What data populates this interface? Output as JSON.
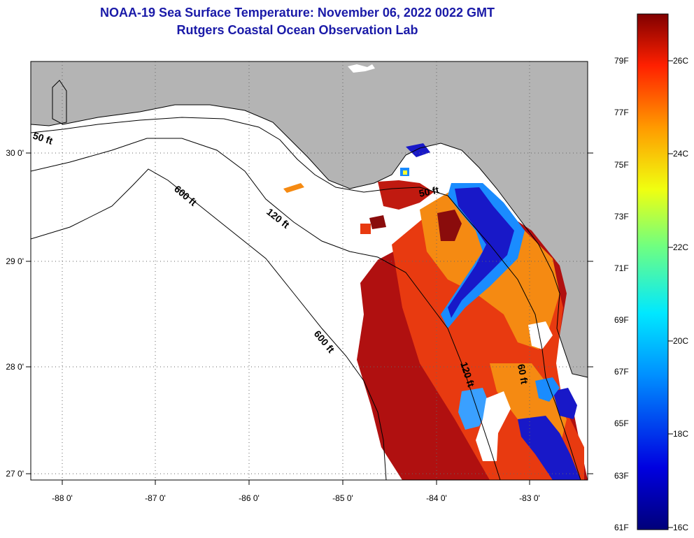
{
  "title": {
    "line1": "NOAA-19 Sea Surface Temperature:  November 06, 2022 0022 GMT",
    "line2": "Rutgers Coastal Ocean Observation Lab"
  },
  "axes": {
    "lat_labels": [
      "30 0'",
      "29 0'",
      "28 0'",
      "27 0'"
    ],
    "lon_labels": [
      "-88 0'",
      "-87 0'",
      "-86 0'",
      "-85 0'",
      "-84 0'",
      "-83 0'"
    ]
  },
  "contours": [
    {
      "id": "c50a",
      "label": "50 ft"
    },
    {
      "id": "c600a",
      "label": "600 ft"
    },
    {
      "id": "c120",
      "label": "120 ft"
    },
    {
      "id": "c50b",
      "label": "50 ft"
    },
    {
      "id": "c600b",
      "label": "600 ft"
    },
    {
      "id": "c120b",
      "label": "120 ft"
    },
    {
      "id": "c60",
      "label": "60 ft"
    }
  ],
  "colorbar": {
    "fahrenheit": [
      "79F",
      "77F",
      "75F",
      "73F",
      "71F",
      "69F",
      "67F",
      "65F",
      "63F",
      "61F"
    ],
    "celsius": [
      "26C",
      "24C",
      "22C",
      "20C",
      "18C",
      "16C"
    ]
  },
  "colors": {
    "title": "#1a1aa8",
    "land": "#b4b4b4",
    "water_nodata": "#ffffff",
    "sst_hot": "#b01010",
    "sst_warm": "#e83a10",
    "sst_mid": "#f58a12",
    "sst_cold": "#1818c8"
  }
}
